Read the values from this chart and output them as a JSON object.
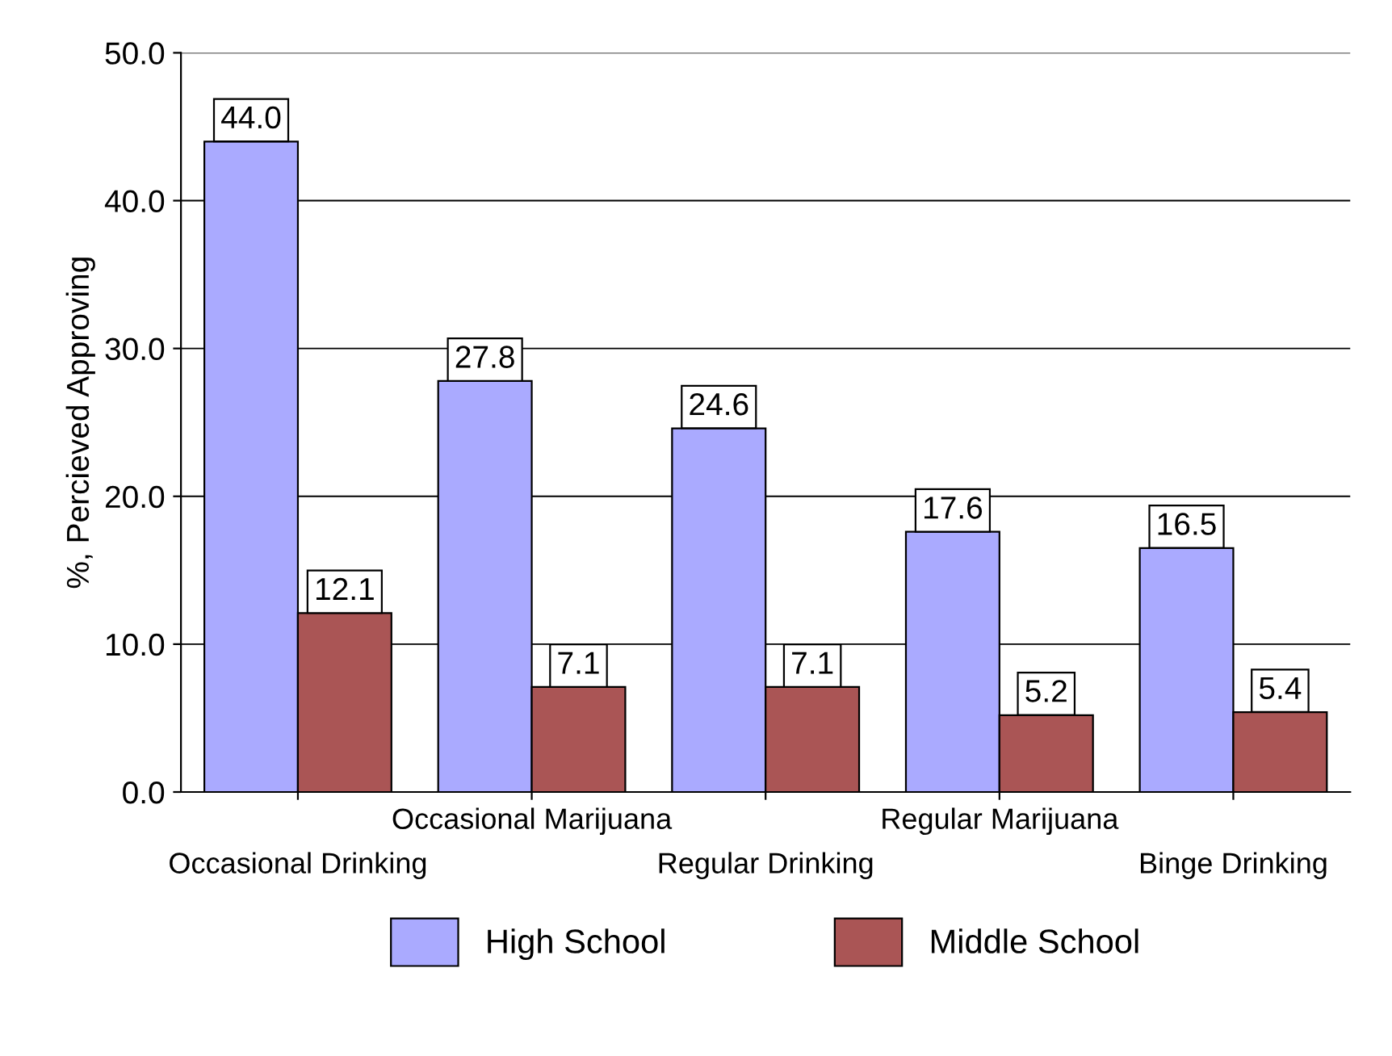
{
  "chart_data": {
    "type": "bar",
    "ylabel": "%, Percieved Approving",
    "categories": [
      "Occasional Drinking",
      "Occasional Marijuana",
      "Regular Drinking",
      "Regular Marijuana",
      "Binge Drinking"
    ],
    "series": [
      {
        "name": "High School",
        "color": "#aaaaff",
        "values": [
          44.0,
          27.8,
          24.6,
          17.6,
          16.5
        ],
        "value_labels": [
          "44.0",
          "27.8",
          "24.6",
          "17.6",
          "16.5"
        ]
      },
      {
        "name": "Middle School",
        "color": "#aa5555",
        "values": [
          12.1,
          7.1,
          7.1,
          5.2,
          5.4
        ],
        "value_labels": [
          "12.1",
          "7.1",
          "7.1",
          "5.2",
          "5.4"
        ]
      }
    ],
    "ylim": [
      0,
      50
    ],
    "yticks": [
      {
        "value": 0,
        "label": "0.0"
      },
      {
        "value": 10,
        "label": "10.0"
      },
      {
        "value": 20,
        "label": "20.0"
      },
      {
        "value": 30,
        "label": "30.0"
      },
      {
        "value": 40,
        "label": "40.0"
      },
      {
        "value": 50,
        "label": "50.0"
      }
    ],
    "grid": "y",
    "legend": "bottom"
  }
}
